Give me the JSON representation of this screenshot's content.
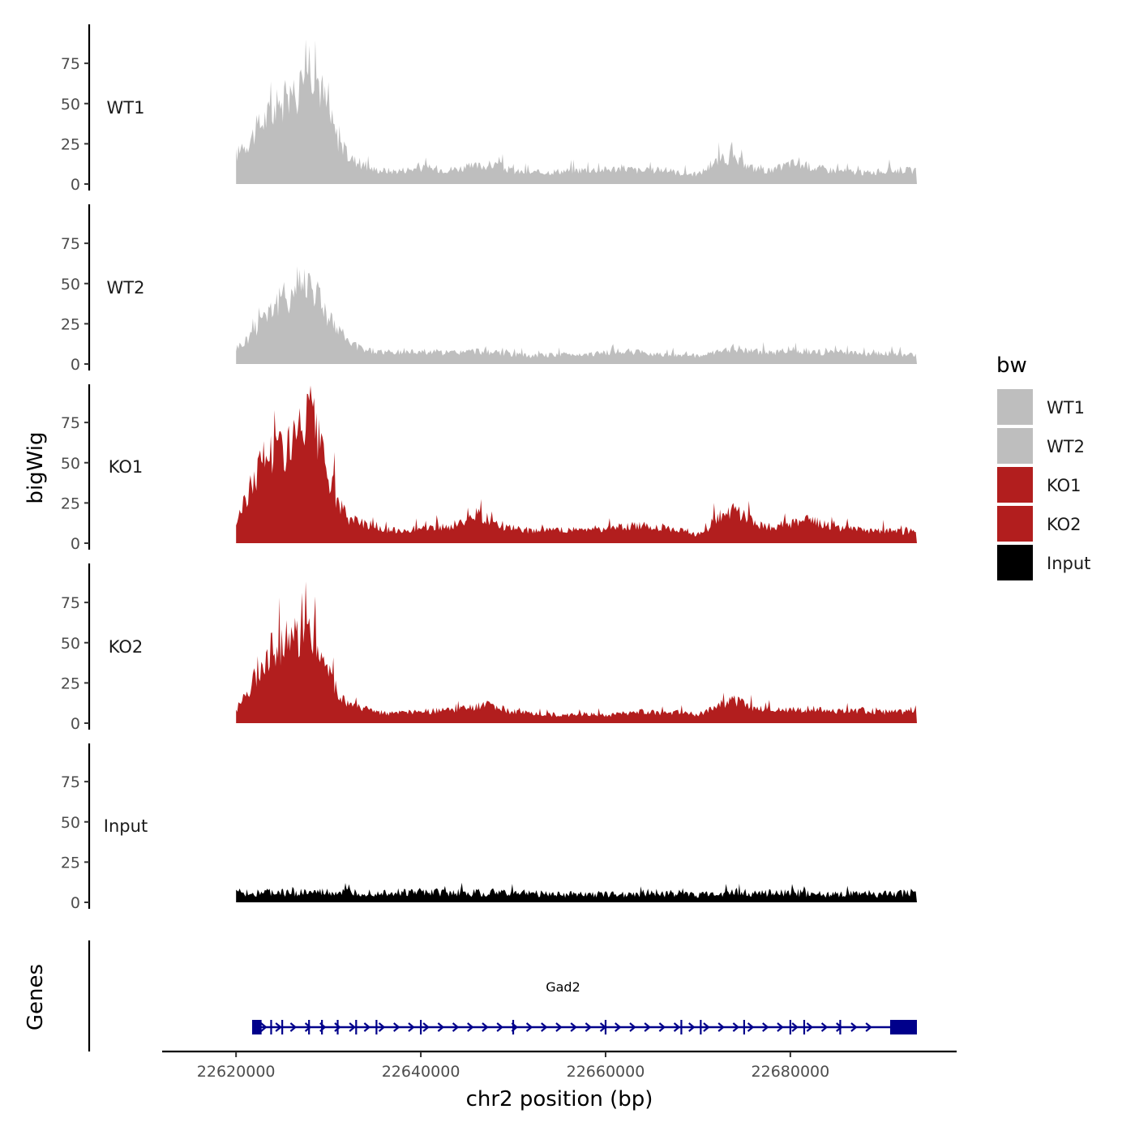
{
  "chart_data": {
    "type": "area",
    "ylabel": "bigWig",
    "xlabel": "chr2 position (bp)",
    "ylim": [
      0,
      100
    ],
    "yticks": [
      0,
      25,
      50,
      75
    ],
    "xlim": [
      22612000,
      22698000
    ],
    "xticks": [
      22620000,
      22640000,
      22660000,
      22680000
    ],
    "xtick_labels": [
      "22620000",
      "22640000",
      "22660000",
      "22680000"
    ],
    "data_range": [
      22620000,
      22693700
    ],
    "legend": {
      "title": "bw",
      "entries": [
        {
          "label": "WT1",
          "color": "#bebebe"
        },
        {
          "label": "WT2",
          "color": "#bebebe"
        },
        {
          "label": "KO1",
          "color": "#b21e1e"
        },
        {
          "label": "KO2",
          "color": "#b21e1e"
        },
        {
          "label": "Input",
          "color": "#000000"
        }
      ]
    },
    "series": [
      {
        "name": "WT1",
        "color": "#bebebe",
        "x": [
          22620000,
          22621000,
          22622000,
          22623000,
          22624000,
          22625000,
          22626000,
          22627000,
          22628000,
          22629000,
          22630000,
          22631000,
          22632000,
          22633000,
          22634000,
          22635000,
          22637000,
          22640000,
          22643000,
          22646000,
          22648000,
          22650000,
          22652000,
          22655000,
          22658000,
          22660000,
          22662000,
          22664000,
          22666000,
          22668000,
          22670000,
          22671000,
          22672000,
          22673000,
          22674000,
          22675000,
          22676000,
          22678000,
          22680000,
          22682000,
          22684000,
          22686000,
          22688000,
          22690000,
          22692000,
          22693700
        ],
        "values": [
          18,
          24,
          32,
          40,
          45,
          50,
          54,
          62,
          80,
          64,
          44,
          28,
          18,
          14,
          11,
          9,
          8,
          10,
          9,
          11,
          12,
          8,
          7,
          8,
          9,
          9,
          10,
          8,
          9,
          7,
          6,
          10,
          14,
          16,
          15,
          12,
          10,
          8,
          13,
          11,
          9,
          8,
          7,
          8,
          9,
          8
        ]
      },
      {
        "name": "WT2",
        "color": "#bebebe",
        "x": [
          22620000,
          22621000,
          22622000,
          22623000,
          22624000,
          22625000,
          22626000,
          22627000,
          22628000,
          22629000,
          22630000,
          22631000,
          22632000,
          22633000,
          22634000,
          22635000,
          22637000,
          22640000,
          22643000,
          22646000,
          22648000,
          22650000,
          22652000,
          22655000,
          22658000,
          22660000,
          22662000,
          22664000,
          22666000,
          22668000,
          22670000,
          22672000,
          22674000,
          22676000,
          22678000,
          22680000,
          22682000,
          22684000,
          22686000,
          22688000,
          22690000,
          22692000,
          22693700
        ],
        "values": [
          10,
          14,
          22,
          32,
          36,
          40,
          44,
          50,
          52,
          42,
          30,
          20,
          14,
          11,
          9,
          8,
          7,
          8,
          7,
          8,
          7,
          6,
          5,
          6,
          6,
          7,
          8,
          7,
          6,
          6,
          5,
          7,
          10,
          8,
          7,
          9,
          8,
          7,
          7,
          6,
          7,
          6,
          6
        ]
      },
      {
        "name": "KO1",
        "color": "#b21e1e",
        "x": [
          22620000,
          22621000,
          22622000,
          22623000,
          22624000,
          22625000,
          22626000,
          22627000,
          22628000,
          22629000,
          22630000,
          22631000,
          22632000,
          22633000,
          22634000,
          22635000,
          22636000,
          22637000,
          22640000,
          22643000,
          22645000,
          22646000,
          22647000,
          22648000,
          22650000,
          22652000,
          22655000,
          22658000,
          22660000,
          22662000,
          22664000,
          22666000,
          22668000,
          22670000,
          22671000,
          22672000,
          22673000,
          22674000,
          22675000,
          22676000,
          22678000,
          22680000,
          22682000,
          22684000,
          22686000,
          22688000,
          22690000,
          22692000,
          22693700
        ],
        "values": [
          12,
          26,
          42,
          54,
          58,
          60,
          62,
          68,
          82,
          60,
          42,
          26,
          16,
          14,
          12,
          10,
          8,
          8,
          9,
          10,
          14,
          18,
          16,
          12,
          9,
          8,
          8,
          9,
          9,
          10,
          11,
          10,
          8,
          5,
          9,
          16,
          18,
          20,
          17,
          13,
          10,
          12,
          14,
          11,
          9,
          8,
          8,
          7,
          8
        ]
      },
      {
        "name": "KO2",
        "color": "#b21e1e",
        "x": [
          22620000,
          22621000,
          22622000,
          22623000,
          22624000,
          22625000,
          22626000,
          22627000,
          22628000,
          22629000,
          22630000,
          22631000,
          22632000,
          22633000,
          22634000,
          22635000,
          22637000,
          22640000,
          22643000,
          22645000,
          22646000,
          22647000,
          22648000,
          22650000,
          22652000,
          22655000,
          22658000,
          22660000,
          22662000,
          22664000,
          22666000,
          22668000,
          22670000,
          22671000,
          22672000,
          22673000,
          22674000,
          22675000,
          22676000,
          22678000,
          22680000,
          22682000,
          22684000,
          22686000,
          22688000,
          22690000,
          22692000,
          22693700
        ],
        "values": [
          8,
          18,
          28,
          40,
          46,
          50,
          52,
          56,
          60,
          46,
          32,
          20,
          12,
          10,
          9,
          7,
          6,
          7,
          8,
          9,
          10,
          12,
          10,
          7,
          6,
          5,
          6,
          5,
          6,
          7,
          6,
          7,
          5,
          8,
          11,
          13,
          14,
          12,
          9,
          8,
          8,
          9,
          8,
          7,
          8,
          7,
          7,
          9
        ]
      },
      {
        "name": "Input",
        "color": "#000000",
        "x": [
          22620000,
          22625000,
          22630000,
          22635000,
          22640000,
          22645000,
          22650000,
          22655000,
          22660000,
          22665000,
          22670000,
          22675000,
          22680000,
          22685000,
          22690000,
          22693700
        ],
        "values": [
          6,
          6,
          6,
          6,
          6,
          6,
          6,
          5,
          5,
          6,
          5,
          6,
          6,
          5,
          5,
          6
        ]
      }
    ],
    "genes": [
      {
        "name": "Gad2",
        "start": 22622000,
        "end": 22693700,
        "strand": "+",
        "exons": [
          22622000,
          22622500,
          22623800,
          22625000,
          22627900,
          22629300,
          22631000,
          22633000,
          22635200,
          22640000,
          22650000,
          22660000,
          22668200,
          22670300,
          22675000,
          22680000,
          22681500,
          22685400,
          22690800
        ]
      }
    ],
    "gene_panel_label": "Genes"
  }
}
